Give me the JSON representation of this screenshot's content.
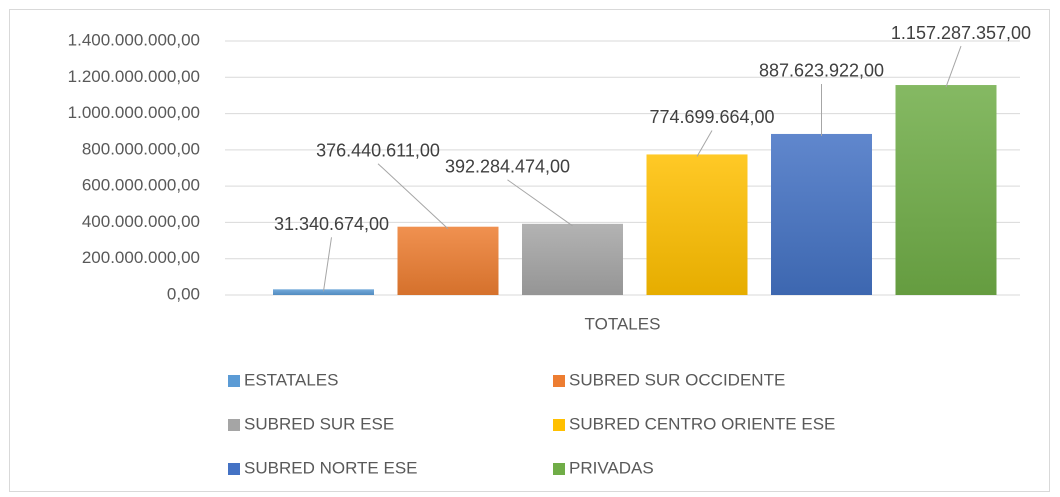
{
  "chart_data": {
    "type": "bar",
    "categories": [
      "TOTALES"
    ],
    "series": [
      {
        "name": "ESTATALES",
        "color": "#5b9bd5",
        "values": [
          31340674
        ],
        "value_labels": [
          "31.340.674,00"
        ]
      },
      {
        "name": "SUBRED SUR OCCIDENTE",
        "color": "#ed7d31",
        "values": [
          376440611
        ],
        "value_labels": [
          "376.440.611,00"
        ]
      },
      {
        "name": "SUBRED SUR ESE",
        "color": "#a5a5a5",
        "values": [
          392284474
        ],
        "value_labels": [
          "392.284.474,00"
        ]
      },
      {
        "name": "SUBRED CENTRO ORIENTE ESE",
        "color": "#ffc000",
        "values": [
          774699664
        ],
        "value_labels": [
          "774.699.664,00"
        ]
      },
      {
        "name": "SUBRED NORTE ESE",
        "color": "#4472c4",
        "values": [
          887623922
        ],
        "value_labels": [
          "887.623.922,00"
        ]
      },
      {
        "name": "PRIVADAS",
        "color": "#70ad47",
        "values": [
          1157287357
        ],
        "value_labels": [
          "1.157.287.357,00"
        ]
      }
    ],
    "ylim": [
      0,
      1400000000
    ],
    "yticks": [
      {
        "value": 0,
        "label": "0,00"
      },
      {
        "value": 200000000,
        "label": "200.000.000,00"
      },
      {
        "value": 400000000,
        "label": "400.000.000,00"
      },
      {
        "value": 600000000,
        "label": "600.000.000,00"
      },
      {
        "value": 800000000,
        "label": "800.000.000,00"
      },
      {
        "value": 1000000000,
        "label": "1.000.000.000,00"
      },
      {
        "value": 1200000000,
        "label": "1.200.000.000,00"
      },
      {
        "value": 1400000000,
        "label": "1.400.000.000,00"
      }
    ],
    "grid": true,
    "legend": "bottom"
  }
}
